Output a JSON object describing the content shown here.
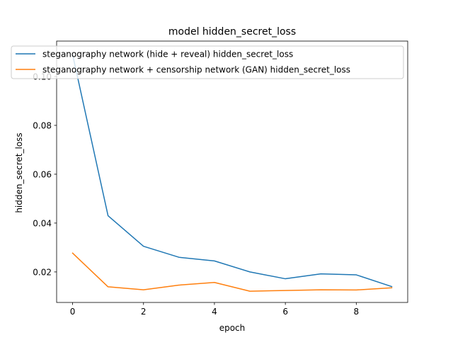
{
  "chart_data": {
    "type": "line",
    "title": "model hidden_secret_loss",
    "xlabel": "epoch",
    "ylabel": "hidden_secret_loss",
    "xlim": [
      -0.45,
      9.45
    ],
    "ylim": [
      0.0075,
      0.1145
    ],
    "xticks": [
      0,
      2,
      4,
      6,
      8
    ],
    "yticks": [
      0.02,
      0.04,
      0.06,
      0.08,
      0.1
    ],
    "ytick_labels": [
      "0.02",
      "0.04",
      "0.06",
      "0.08",
      "0.10"
    ],
    "grid": false,
    "legend_position": "upper-left",
    "x": [
      0,
      1,
      2,
      3,
      4,
      5,
      6,
      7,
      8,
      9
    ],
    "series": [
      {
        "name": "steganography network (hide + reveal) hidden_secret_loss",
        "color": "#1f77b4",
        "values": [
          0.109,
          0.043,
          0.0305,
          0.026,
          0.0245,
          0.02,
          0.0172,
          0.0192,
          0.0188,
          0.014
        ]
      },
      {
        "name": "steganography network + censorship network (GAN) hidden_secret_loss",
        "color": "#ff7f0e",
        "values": [
          0.0277,
          0.0139,
          0.0127,
          0.0146,
          0.0157,
          0.0121,
          0.0124,
          0.0127,
          0.0126,
          0.0135
        ]
      }
    ]
  }
}
